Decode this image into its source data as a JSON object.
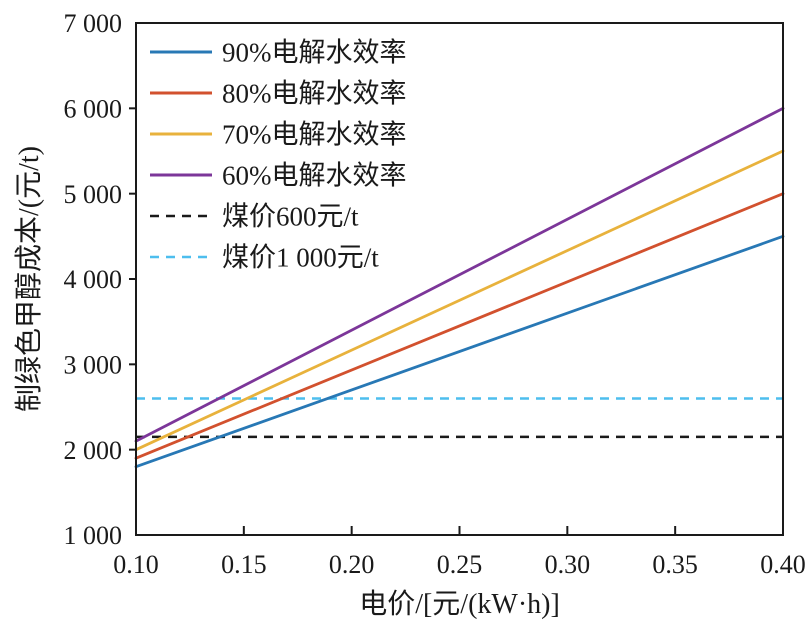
{
  "figure": {
    "background": "#ffffff"
  },
  "chart_data": {
    "type": "line",
    "title": "",
    "xlabel": "电价/[元/(kW·h)]",
    "ylabel": "制绿色甲醇成本/(元/t)",
    "xlim": [
      0.1,
      0.4
    ],
    "ylim": [
      1000,
      7000
    ],
    "x_ticks": [
      0.1,
      0.15,
      0.2,
      0.25,
      0.3,
      0.35,
      0.4
    ],
    "x_tick_labels": [
      "0.10",
      "0.15",
      "0.20",
      "0.25",
      "0.30",
      "0.35",
      "0.40"
    ],
    "y_ticks": [
      1000,
      2000,
      3000,
      4000,
      5000,
      6000,
      7000
    ],
    "y_tick_labels": [
      "1 000",
      "2 000",
      "3 000",
      "4 000",
      "5 000",
      "6 000",
      "7 000"
    ],
    "grid": false,
    "legend_position": "top-left-inside",
    "axis_color": "#1a1a1a",
    "text_color": "#1a1a1a",
    "series": [
      {
        "name": "90%电解水效率",
        "color": "#2878B5",
        "style": "solid",
        "x": [
          0.1,
          0.4
        ],
        "y": [
          1800,
          4500
        ]
      },
      {
        "name": "80%电解水效率",
        "color": "#D2512E",
        "style": "solid",
        "x": [
          0.1,
          0.4
        ],
        "y": [
          1900,
          5000
        ]
      },
      {
        "name": "70%电解水效率",
        "color": "#E8B23C",
        "style": "solid",
        "x": [
          0.1,
          0.4
        ],
        "y": [
          2000,
          5500
        ]
      },
      {
        "name": "60%电解水效率",
        "color": "#7C3699",
        "style": "solid",
        "x": [
          0.1,
          0.4
        ],
        "y": [
          2100,
          6000
        ]
      }
    ],
    "reference_lines": [
      {
        "name": "煤价600元/t",
        "color": "#1a1a1a",
        "style": "dashed",
        "y": 2150
      },
      {
        "name": "煤价1 000元/t",
        "color": "#4DBEEE",
        "style": "dashed",
        "y": 2600
      }
    ]
  }
}
